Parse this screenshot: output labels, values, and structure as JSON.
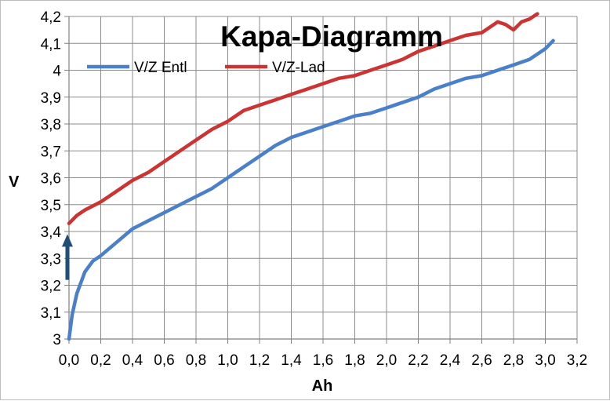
{
  "chart_data": {
    "type": "line",
    "title": "Kapa-Diagramm",
    "xlabel": "Ah",
    "ylabel": "V",
    "xlim": [
      0,
      3.2
    ],
    "ylim": [
      3,
      4.2
    ],
    "grid": true,
    "legend_position": "top-left",
    "x_ticks": [
      "0,0",
      "0,2",
      "0,4",
      "0,6",
      "0,8",
      "1,0",
      "1,2",
      "1,4",
      "1,6",
      "1,8",
      "2,0",
      "2,2",
      "2,4",
      "2,6",
      "2,8",
      "3,0",
      "3,2"
    ],
    "y_ticks": [
      "3",
      "3,1",
      "3,2",
      "3,3",
      "3,4",
      "3,5",
      "3,6",
      "3,7",
      "3,8",
      "3,9",
      "4",
      "4,1",
      "4,2"
    ],
    "series": [
      {
        "name": "V/Z Entl",
        "color": "#4a7fc9",
        "x": [
          0.0,
          0.02,
          0.05,
          0.1,
          0.15,
          0.2,
          0.3,
          0.4,
          0.5,
          0.6,
          0.7,
          0.8,
          0.9,
          1.0,
          1.1,
          1.2,
          1.3,
          1.4,
          1.5,
          1.6,
          1.7,
          1.8,
          1.9,
          2.0,
          2.1,
          2.2,
          2.3,
          2.4,
          2.5,
          2.6,
          2.7,
          2.8,
          2.9,
          3.0,
          3.05
        ],
        "y": [
          3.0,
          3.09,
          3.17,
          3.25,
          3.29,
          3.31,
          3.36,
          3.41,
          3.44,
          3.47,
          3.5,
          3.53,
          3.56,
          3.6,
          3.64,
          3.68,
          3.72,
          3.75,
          3.77,
          3.79,
          3.81,
          3.83,
          3.84,
          3.86,
          3.88,
          3.9,
          3.93,
          3.95,
          3.97,
          3.98,
          4.0,
          4.02,
          4.04,
          4.08,
          4.11
        ]
      },
      {
        "name": "V/Z-Lad",
        "color": "#cc3333",
        "x": [
          0.0,
          0.05,
          0.1,
          0.2,
          0.3,
          0.4,
          0.5,
          0.6,
          0.7,
          0.8,
          0.9,
          1.0,
          1.1,
          1.2,
          1.3,
          1.4,
          1.5,
          1.6,
          1.7,
          1.8,
          1.9,
          2.0,
          2.1,
          2.2,
          2.3,
          2.4,
          2.5,
          2.6,
          2.7,
          2.75,
          2.8,
          2.85,
          2.9,
          2.95
        ],
        "y": [
          3.43,
          3.46,
          3.48,
          3.51,
          3.55,
          3.59,
          3.62,
          3.66,
          3.7,
          3.74,
          3.78,
          3.81,
          3.85,
          3.87,
          3.89,
          3.91,
          3.93,
          3.95,
          3.97,
          3.98,
          4.0,
          4.02,
          4.04,
          4.07,
          4.09,
          4.11,
          4.13,
          4.14,
          4.18,
          4.17,
          4.15,
          4.18,
          4.19,
          4.21
        ]
      }
    ],
    "annotations": [
      {
        "type": "arrow",
        "direction": "up",
        "color": "#1f4e79",
        "x": -0.01,
        "y_from": 3.22,
        "y_to": 3.39
      }
    ]
  }
}
